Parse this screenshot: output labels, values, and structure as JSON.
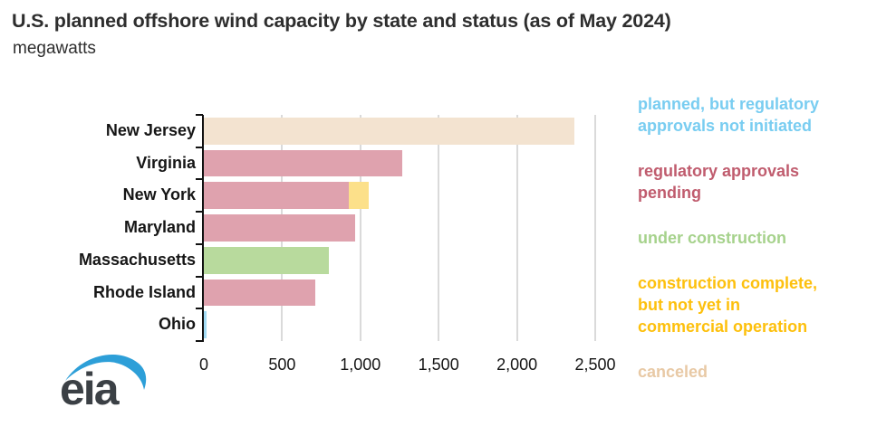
{
  "chart_data": {
    "type": "bar",
    "orientation": "horizontal",
    "title": "U.S. planned offshore wind capacity by state and status (as of May 2024)",
    "subtitle": "megawatts",
    "unit": "megawatts",
    "categories": [
      "New Jersey",
      "Virginia",
      "New York",
      "Maryland",
      "Massachusetts",
      "Rhode Island",
      "Ohio"
    ],
    "xlim": [
      0,
      2630
    ],
    "xticks": [
      0,
      500,
      1000,
      1500,
      2000,
      2500
    ],
    "xtick_labels": [
      "0",
      "500",
      "1,000",
      "1,500",
      "2,000",
      "2,500"
    ],
    "grid": "vertical-only",
    "legend_position": "right",
    "bars": [
      {
        "category": "New Jersey",
        "segments": [
          {
            "status": "canceled",
            "value_mw": 2365
          }
        ]
      },
      {
        "category": "Virginia",
        "segments": [
          {
            "status": "regulatory approvals pending",
            "value_mw": 1265
          }
        ]
      },
      {
        "category": "New York",
        "segments": [
          {
            "status": "regulatory approvals pending",
            "value_mw": 924
          },
          {
            "status": "construction complete, but not yet in commercial operation",
            "value_mw": 132
          }
        ]
      },
      {
        "category": "Maryland",
        "segments": [
          {
            "status": "regulatory approvals pending",
            "value_mw": 966
          }
        ]
      },
      {
        "category": "Massachusetts",
        "segments": [
          {
            "status": "under construction",
            "value_mw": 800
          }
        ]
      },
      {
        "category": "Rhode Island",
        "segments": [
          {
            "status": "regulatory approvals pending",
            "value_mw": 710
          }
        ]
      },
      {
        "category": "Ohio",
        "segments": [
          {
            "status": "planned, but regulatory approvals not initiated",
            "value_mw": 20
          }
        ]
      }
    ],
    "status_colors": {
      "planned, but regulatory approvals not initiated": "#a3dcf5",
      "regulatory approvals pending": "#dfa2ae",
      "under construction": "#b8da9d",
      "construction complete, but not yet in commercial operation": "#fce08a",
      "canceled": "#f3e3d0"
    }
  },
  "legend": {
    "items": [
      {
        "label": "planned, but regulatory\napprovals not initiated",
        "text_color": "#79cdf1"
      },
      {
        "label": "regulatory approvals\npending",
        "text_color": "#c05c6e"
      },
      {
        "label": "under construction",
        "text_color": "#a6d28c"
      },
      {
        "label": "construction complete,\nbut not yet in\ncommercial operation",
        "text_color": "#fdc00d"
      },
      {
        "label": "canceled",
        "text_color": "#e8c9a5"
      }
    ]
  },
  "logo": {
    "text": "eia",
    "swoosh_color": "#2d9fd8",
    "text_color": "#3b4045"
  }
}
